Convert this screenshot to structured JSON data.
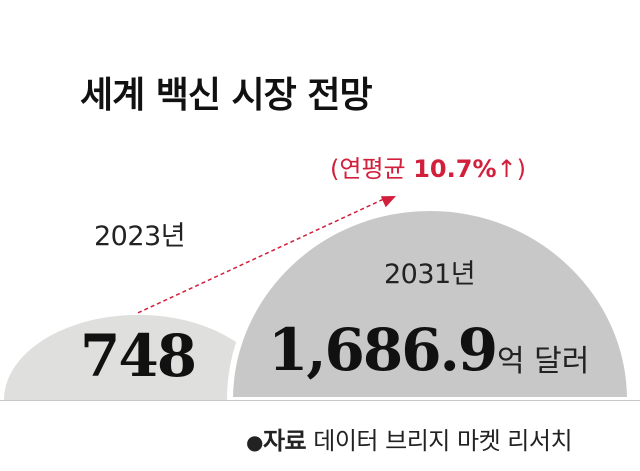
{
  "chart_data": {
    "type": "bar",
    "title": "세계 백신 시장 전망",
    "categories": [
      "2023년",
      "2031년"
    ],
    "values": [
      748,
      1686.9
    ],
    "value_labels": [
      "748",
      "1,686.9"
    ],
    "unit": "억 달러",
    "annotation": {
      "open": "(연평균 ",
      "rate": "10.7%",
      "close": "↑)"
    },
    "source": {
      "bullet": "●",
      "label": "자료",
      "text": " 데이터 브리지 마켓 리서치"
    }
  },
  "colors": {
    "bar_2023": "#dfdfdd",
    "bar_2031": "#c8c8c8",
    "accent": "#d21f3c",
    "text": "#111111",
    "baseline": "#c8c8c8"
  }
}
